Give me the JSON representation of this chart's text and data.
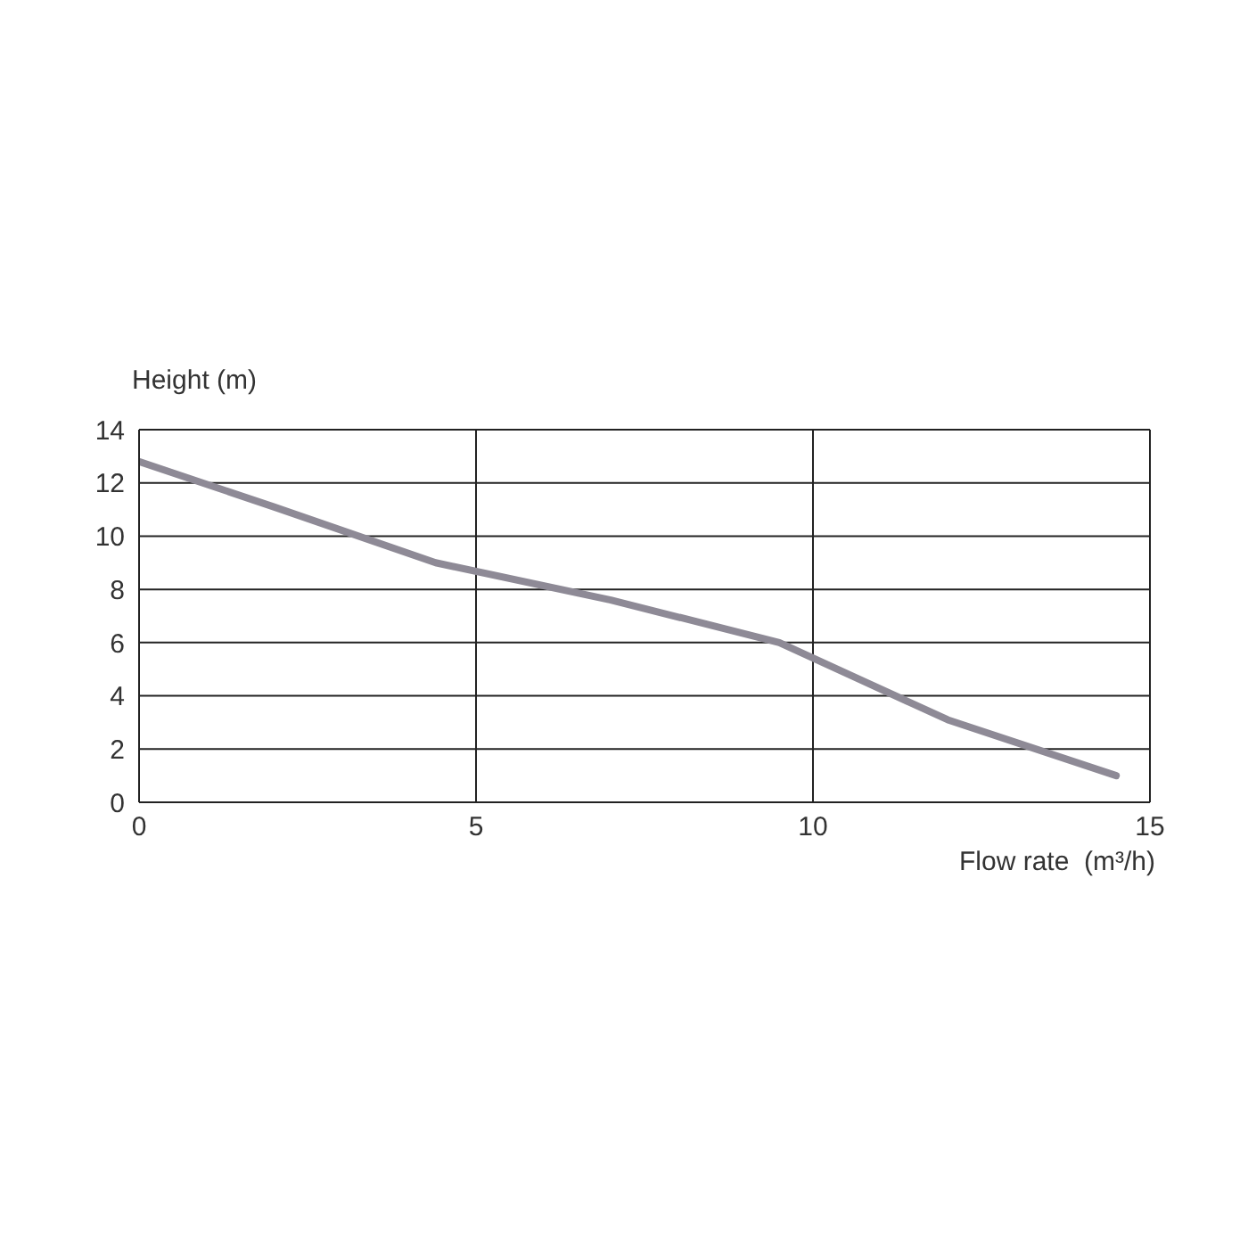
{
  "chart_data": {
    "type": "line",
    "xlabel": "Flow rate  (m³/h)",
    "ylabel": "Height (m)",
    "x": [
      0,
      2,
      4.4,
      7,
      9.5,
      12,
      14.5
    ],
    "series": [
      {
        "color": "#8e8a96",
        "values": [
          12.8,
          11.1,
          9.0,
          7.6,
          6.0,
          3.1,
          1.0
        ]
      }
    ],
    "xlim": [
      0,
      15
    ],
    "xticks": [
      0,
      5,
      10,
      15
    ],
    "ylim": [
      0,
      14
    ],
    "yticks": [
      0,
      2,
      4,
      6,
      8,
      10,
      12,
      14
    ],
    "grid": true,
    "marker": "none",
    "line_style": "solid"
  }
}
